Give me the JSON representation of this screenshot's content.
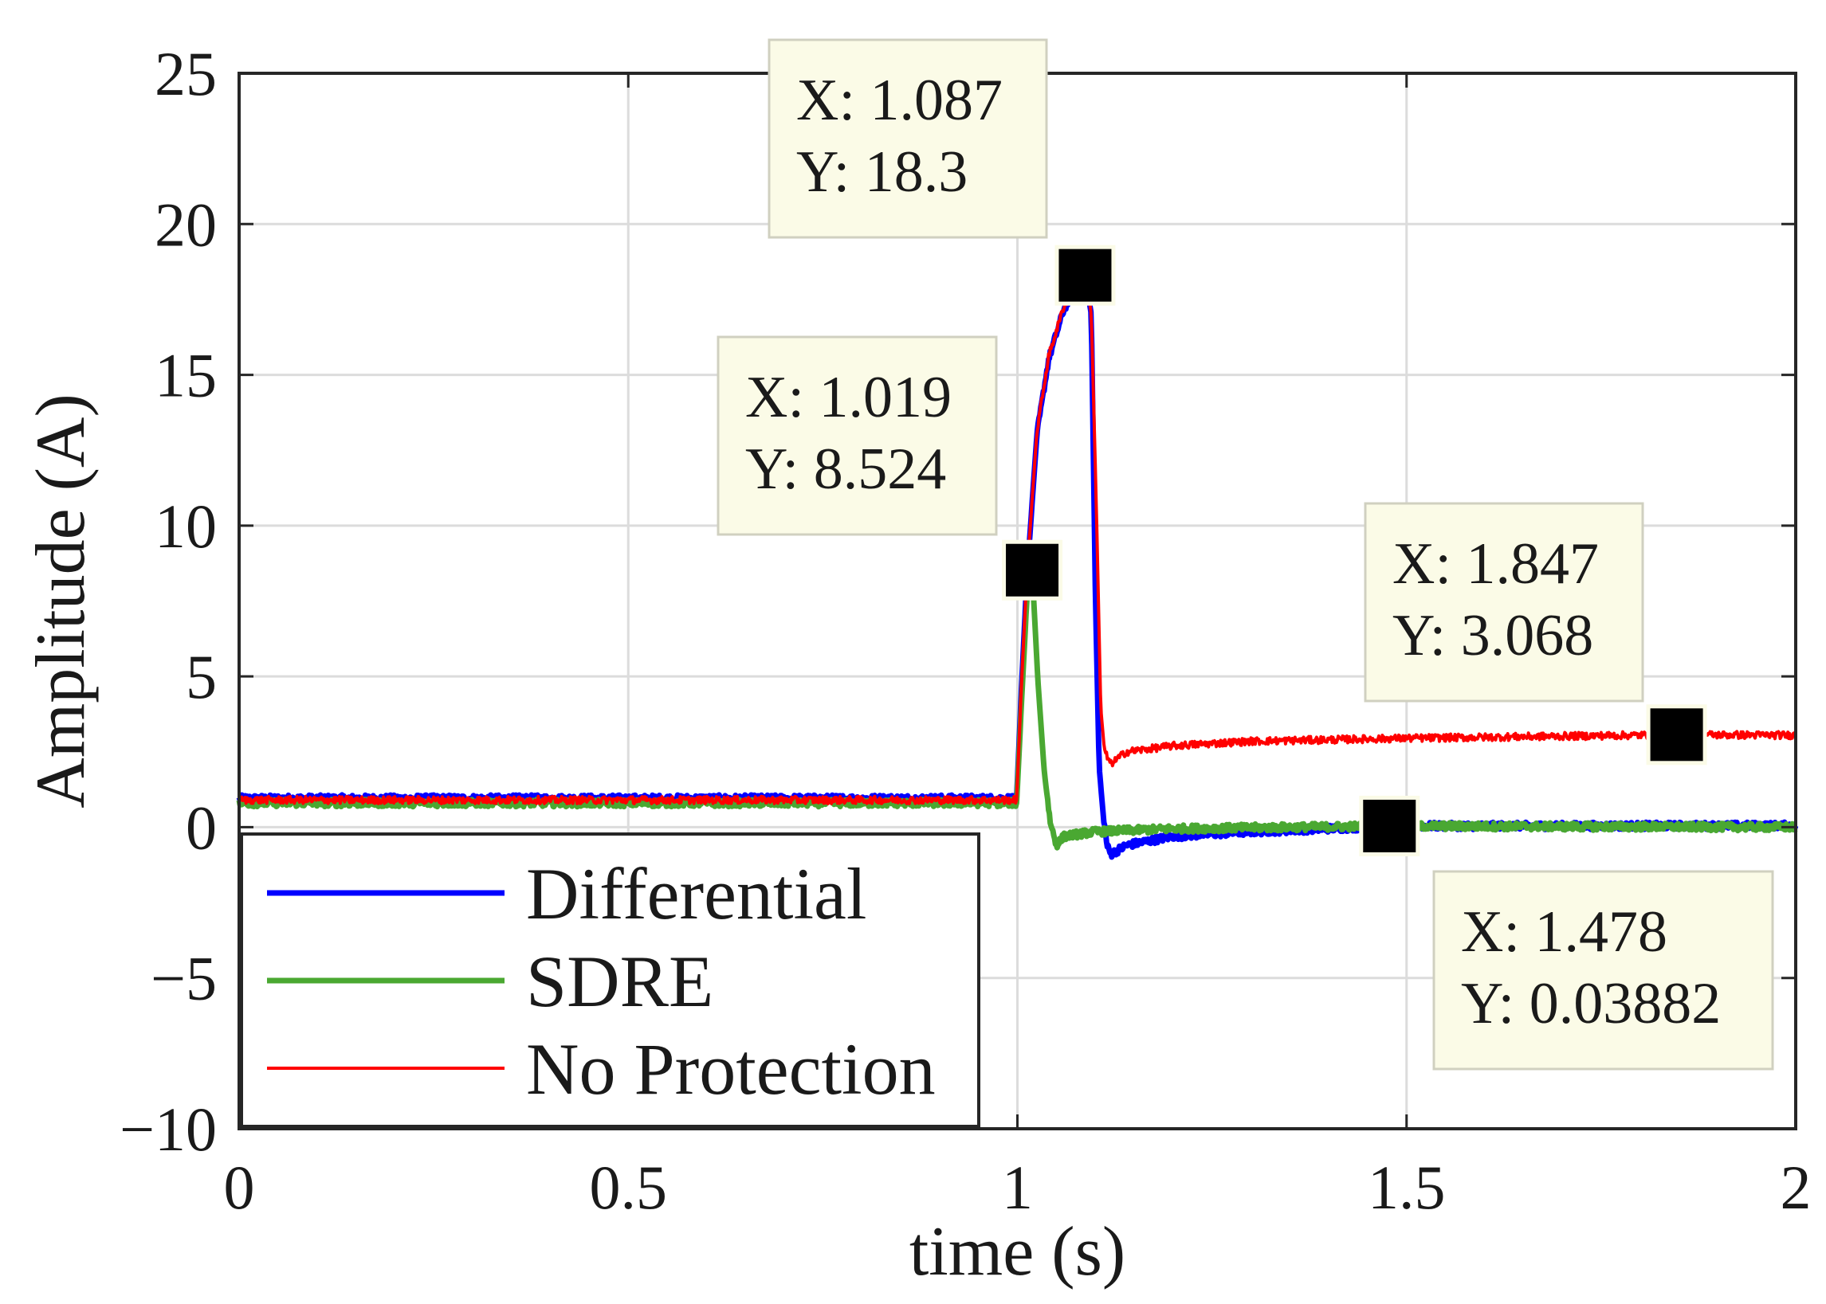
{
  "chart_data": {
    "type": "line",
    "title": "",
    "xlabel": "time (s)",
    "ylabel": "Amplitude (A)",
    "xlim": [
      0,
      2
    ],
    "ylim": [
      -10,
      25
    ],
    "x_ticks": [
      0,
      0.5,
      1,
      1.5,
      2
    ],
    "x_tick_labels": [
      "0",
      "0.5",
      "1",
      "1.5",
      "2"
    ],
    "y_ticks": [
      -10,
      -5,
      0,
      5,
      10,
      15,
      20,
      25
    ],
    "y_tick_labels": [
      "−10",
      "−5",
      "0",
      "5",
      "10",
      "15",
      "20",
      "25"
    ],
    "grid": true,
    "legend_position": "bottom-left",
    "series": [
      {
        "name": "Differential",
        "color": "#0000ff",
        "points": [
          [
            0,
            0.95
          ],
          [
            0.999,
            0.95
          ],
          [
            1.005,
            4.5
          ],
          [
            1.012,
            8.2
          ],
          [
            1.025,
            13.0
          ],
          [
            1.04,
            15.5
          ],
          [
            1.06,
            17.2
          ],
          [
            1.087,
            18.3
          ],
          [
            1.095,
            17.0
          ],
          [
            1.1,
            8.0
          ],
          [
            1.105,
            2.0
          ],
          [
            1.11,
            0.5
          ],
          [
            1.115,
            -0.6
          ],
          [
            1.12,
            -0.9
          ],
          [
            1.14,
            -0.6
          ],
          [
            1.2,
            -0.3
          ],
          [
            1.3,
            -0.15
          ],
          [
            1.478,
            0.03882
          ],
          [
            2,
            0.05
          ]
        ]
      },
      {
        "name": "SDRE",
        "color": "#4aa832",
        "points": [
          [
            0,
            0.8
          ],
          [
            0.999,
            0.8
          ],
          [
            1.005,
            4.0
          ],
          [
            1.012,
            7.5
          ],
          [
            1.019,
            8.524
          ],
          [
            1.026,
            5.0
          ],
          [
            1.034,
            2.0
          ],
          [
            1.042,
            0.2
          ],
          [
            1.05,
            -0.6
          ],
          [
            1.06,
            -0.3
          ],
          [
            1.1,
            -0.15
          ],
          [
            1.2,
            -0.05
          ],
          [
            1.478,
            0.03882
          ],
          [
            2,
            0.0
          ]
        ]
      },
      {
        "name": "No Protection",
        "color": "#ff0000",
        "points": [
          [
            0,
            0.9
          ],
          [
            0.999,
            0.9
          ],
          [
            1.005,
            4.6
          ],
          [
            1.012,
            8.3
          ],
          [
            1.025,
            13.1
          ],
          [
            1.04,
            15.6
          ],
          [
            1.06,
            17.3
          ],
          [
            1.087,
            18.3
          ],
          [
            1.095,
            17.0
          ],
          [
            1.102,
            10.0
          ],
          [
            1.107,
            4.0
          ],
          [
            1.112,
            2.5
          ],
          [
            1.12,
            2.1
          ],
          [
            1.14,
            2.5
          ],
          [
            1.2,
            2.7
          ],
          [
            1.3,
            2.85
          ],
          [
            1.5,
            2.95
          ],
          [
            1.847,
            3.068
          ],
          [
            2,
            3.05
          ]
        ]
      }
    ],
    "noise_amplitude": 0.12,
    "datatips": [
      {
        "x": 1.087,
        "y": 18.3,
        "x_text": "X: 1.087",
        "y_text": "Y: 18.3",
        "placement": "upper-left"
      },
      {
        "x": 1.019,
        "y": 8.524,
        "x_text": "X: 1.019",
        "y_text": "Y: 8.524",
        "placement": "left"
      },
      {
        "x": 1.847,
        "y": 3.068,
        "x_text": "X: 1.847",
        "y_text": "Y: 3.068",
        "placement": "upper-left"
      },
      {
        "x": 1.478,
        "y": 0.03882,
        "x_text": "X: 1.478",
        "y_text": "Y: 0.03882",
        "placement": "lower-right"
      }
    ]
  }
}
